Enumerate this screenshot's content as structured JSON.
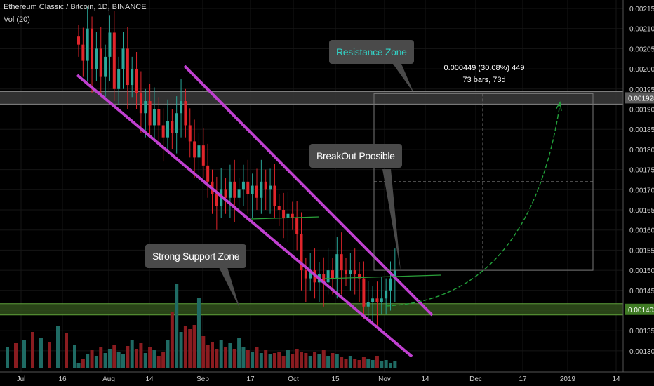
{
  "header": {
    "symbol": "Ethereum Classic / Bitcoin, 1D, BINANCE",
    "volume": "Vol (20)"
  },
  "annotations": {
    "resistance": "Resistance Zone",
    "breakout": "BreakOut Poosible",
    "support": "Strong Support Zone",
    "measure_line1": "0.000449 (30.08%) 449",
    "measure_line2": "73 bars, 73d"
  },
  "price_tags": {
    "resistance": "0.001928",
    "support": "0.001403"
  },
  "colors": {
    "up": "#2aa89a",
    "down": "#e0252b",
    "channel": "#c040d0",
    "zone_fill": "#3a3a3a",
    "support_fill": "#2e4a1a",
    "support_line": "#5fa13a",
    "projection": "#22a03a"
  },
  "chart_data": {
    "type": "candlestick",
    "yaxis": {
      "min": 0.00125,
      "max": 0.00217,
      "ticks": [
        "0.00215",
        "0.00210",
        "0.00205",
        "0.00200",
        "0.00195",
        "0.00190",
        "0.00185",
        "0.00180",
        "0.00175",
        "0.00170",
        "0.00165",
        "0.00160",
        "0.00155",
        "0.00150",
        "0.00145",
        "0.00140",
        "0.00135",
        "0.00130"
      ]
    },
    "xaxis": {
      "ticks": [
        "Jul",
        "16",
        "Aug",
        "14",
        "Sep",
        "17",
        "Oct",
        "15",
        "Nov",
        "14",
        "Dec",
        "17",
        "2019",
        "14"
      ]
    },
    "close_path": [
      [
        0,
        0.00206
      ],
      [
        1,
        0.00202
      ],
      [
        2,
        0.0021
      ],
      [
        3,
        0.002
      ],
      [
        4,
        0.00205
      ],
      [
        5,
        0.00198
      ],
      [
        6,
        0.00203
      ],
      [
        7,
        0.00209
      ],
      [
        8,
        0.00195
      ],
      [
        9,
        0.002
      ],
      [
        10,
        0.00205
      ],
      [
        11,
        0.00196
      ],
      [
        12,
        0.002
      ],
      [
        13,
        0.00194
      ],
      [
        14,
        0.00189
      ],
      [
        15,
        0.00192
      ],
      [
        16,
        0.00186
      ],
      [
        17,
        0.0019
      ],
      [
        18,
        0.00186
      ],
      [
        19,
        0.00183
      ],
      [
        20,
        0.00187
      ],
      [
        21,
        0.00184
      ],
      [
        22,
        0.00189
      ],
      [
        23,
        0.00192
      ],
      [
        24,
        0.00186
      ],
      [
        25,
        0.00182
      ],
      [
        26,
        0.00178
      ],
      [
        27,
        0.00181
      ],
      [
        28,
        0.00176
      ],
      [
        29,
        0.00172
      ],
      [
        30,
        0.00169
      ],
      [
        31,
        0.00166
      ],
      [
        32,
        0.0017
      ],
      [
        33,
        0.00168
      ],
      [
        34,
        0.00172
      ],
      [
        35,
        0.00168
      ],
      [
        36,
        0.0017
      ],
      [
        37,
        0.00172
      ],
      [
        38,
        0.00169
      ],
      [
        39,
        0.00171
      ],
      [
        40,
        0.00168
      ],
      [
        41,
        0.00172
      ],
      [
        42,
        0.0017
      ],
      [
        43,
        0.00171
      ],
      [
        44,
        0.00166
      ],
      [
        45,
        0.00165
      ],
      [
        46,
        0.00163
      ],
      [
        47,
        0.00164
      ],
      [
        48,
        0.00163
      ],
      [
        49,
        0.00159
      ],
      [
        50,
        0.0015
      ],
      [
        51,
        0.00148
      ],
      [
        52,
        0.0015
      ],
      [
        53,
        0.00147
      ],
      [
        54,
        0.00149
      ],
      [
        55,
        0.00147
      ],
      [
        56,
        0.0015
      ],
      [
        57,
        0.00148
      ],
      [
        58,
        0.00154
      ],
      [
        59,
        0.0015
      ],
      [
        60,
        0.00149
      ],
      [
        61,
        0.0015
      ],
      [
        62,
        0.00149
      ],
      [
        63,
        0.00148
      ],
      [
        64,
        0.00141
      ],
      [
        65,
        0.00142
      ],
      [
        66,
        0.00143
      ],
      [
        67,
        0.00142
      ],
      [
        68,
        0.00143
      ],
      [
        69,
        0.00145
      ],
      [
        70,
        0.00148
      ],
      [
        71,
        0.0015
      ]
    ],
    "volume_path": [
      [
        0,
        8
      ],
      [
        1,
        14
      ],
      [
        2,
        20
      ],
      [
        3,
        26
      ],
      [
        4,
        18
      ],
      [
        5,
        30
      ],
      [
        6,
        22
      ],
      [
        7,
        28
      ],
      [
        8,
        34
      ],
      [
        9,
        24
      ],
      [
        10,
        20
      ],
      [
        11,
        32
      ],
      [
        12,
        40
      ],
      [
        13,
        28
      ],
      [
        14,
        36
      ],
      [
        15,
        22
      ],
      [
        16,
        30
      ],
      [
        17,
        26
      ],
      [
        18,
        18
      ],
      [
        19,
        24
      ],
      [
        20,
        40
      ],
      [
        21,
        80
      ],
      [
        22,
        120
      ],
      [
        23,
        52
      ],
      [
        24,
        60
      ],
      [
        25,
        56
      ],
      [
        26,
        62
      ],
      [
        27,
        100
      ],
      [
        28,
        46
      ],
      [
        29,
        34
      ],
      [
        30,
        38
      ],
      [
        31,
        28
      ],
      [
        32,
        40
      ],
      [
        33,
        30
      ],
      [
        34,
        36
      ],
      [
        35,
        28
      ],
      [
        36,
        44
      ],
      [
        37,
        30
      ],
      [
        38,
        26
      ],
      [
        39,
        24
      ],
      [
        40,
        30
      ],
      [
        41,
        22
      ],
      [
        42,
        26
      ],
      [
        43,
        20
      ],
      [
        44,
        22
      ],
      [
        45,
        24
      ],
      [
        46,
        18
      ],
      [
        47,
        26
      ],
      [
        48,
        20
      ],
      [
        49,
        28
      ],
      [
        50,
        24
      ],
      [
        51,
        22
      ],
      [
        52,
        18
      ],
      [
        53,
        24
      ],
      [
        54,
        20
      ],
      [
        55,
        26
      ],
      [
        56,
        18
      ],
      [
        57,
        22
      ],
      [
        58,
        20
      ],
      [
        59,
        16
      ],
      [
        60,
        14
      ],
      [
        61,
        18
      ],
      [
        62,
        14
      ],
      [
        63,
        12
      ],
      [
        64,
        16
      ],
      [
        65,
        14
      ],
      [
        66,
        12
      ],
      [
        67,
        18
      ],
      [
        68,
        10
      ],
      [
        69,
        12
      ],
      [
        70,
        8
      ],
      [
        71,
        10
      ]
    ],
    "levels": {
      "resistance": 0.001928,
      "support": 0.001403,
      "breakout_target": 0.00172,
      "box_bottom": 0.0015
    }
  }
}
